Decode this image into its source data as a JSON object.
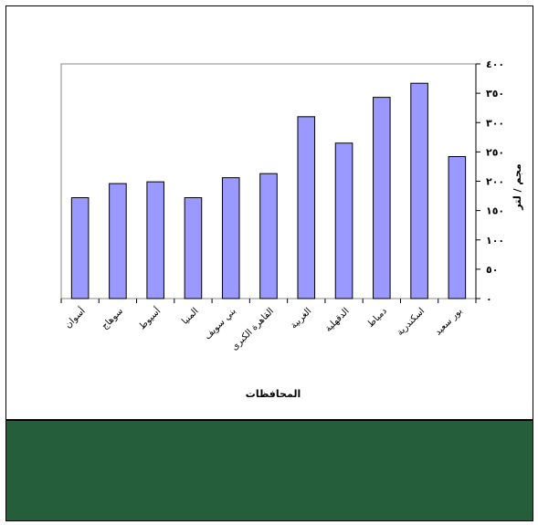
{
  "colors": {
    "bar_fill": "#9999ff",
    "bar_stroke": "#000000",
    "footer_band": "#245e3a",
    "background": "#ffffff"
  },
  "chart_data": {
    "type": "bar",
    "categories": [
      "أسوان",
      "سوهاج",
      "أسيوط",
      "المنيا",
      "بني سويف",
      "القاهرة الكبرى",
      "الغربية",
      "الدقهلية",
      "دمياط",
      "اسكندرية",
      "بور سعيد"
    ],
    "values": [
      172,
      196,
      199,
      172,
      206,
      213,
      310,
      265,
      343,
      367,
      242
    ],
    "title": "",
    "xlabel": "المحافظات",
    "ylabel": "مجم / لتر",
    "ylim": [
      0,
      400
    ],
    "yticks": [
      0,
      50,
      100,
      150,
      200,
      250,
      300,
      350,
      400
    ],
    "ytick_labels": [
      "٠",
      "٥٠",
      "١٠٠",
      "١٥٠",
      "٢٠٠",
      "٢٥٠",
      "٣٠٠",
      "٣٥٠",
      "٤٠٠"
    ],
    "y_axis_side": "right",
    "grid": false,
    "legend": "none"
  }
}
